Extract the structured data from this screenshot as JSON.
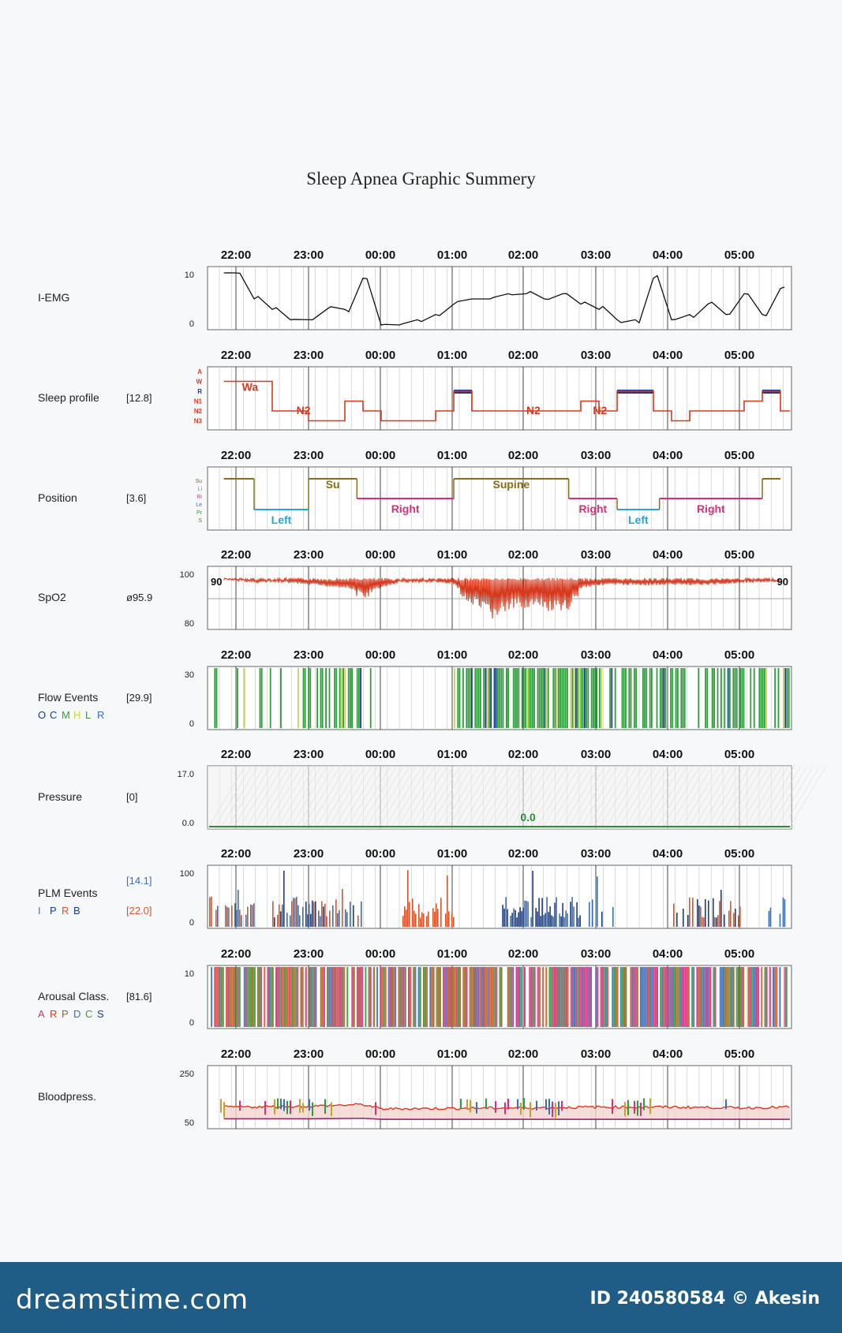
{
  "title": "Sleep Apnea Graphic Summery",
  "time_ticks": [
    "22:00",
    "23:00",
    "00:00",
    "01:00",
    "02:00",
    "03:00",
    "04:00",
    "05:00"
  ],
  "colors": {
    "grid": "#b5b5b5",
    "border": "#666666",
    "emg": "#111111",
    "sleep": "#d63a1e",
    "sleep_rem": "#1a3c8f",
    "position_su": "#8a6d1a",
    "position_left": "#23a6d9",
    "position_right": "#d6307a",
    "spo2": "#d63a1e",
    "flow": "#2e9e3c",
    "flow_c": "#1a3c8f",
    "flow_h": "#c9d64a",
    "pressure": "#2e8b3a",
    "plm_a": "#d9542a",
    "plm_b": "#1a3c8f",
    "plm_c": "#3a6fb5",
    "arousal_a": "#d6307a",
    "arousal_b": "#2e9e3c",
    "arousal_c": "#8a6d1a",
    "bp_sys": "#d63a1e",
    "bp_dia": "#8e2a6a",
    "bp_band": "#f2d4cf"
  },
  "chart_data": [
    {
      "id": "emg",
      "type": "line",
      "label": "I-EMG",
      "value": "",
      "legend": "",
      "ylim": [
        0,
        10
      ],
      "yticks": [
        "10",
        "0"
      ],
      "x": [
        "21:50",
        "22:00",
        "22:15",
        "22:30",
        "22:45",
        "23:00",
        "23:15",
        "23:30",
        "23:45",
        "00:00",
        "00:15",
        "00:30",
        "00:45",
        "01:00",
        "01:15",
        "01:30",
        "01:45",
        "02:00",
        "02:15",
        "02:30",
        "02:45",
        "03:00",
        "03:15",
        "03:30",
        "03:45",
        "04:00",
        "04:15",
        "04:30",
        "04:45",
        "05:00",
        "05:15",
        "05:30"
      ],
      "y": [
        10,
        10,
        5,
        3,
        1,
        1,
        3,
        3,
        9,
        0,
        0,
        1,
        2,
        4,
        5,
        5,
        6,
        6,
        5,
        6,
        4,
        3,
        1,
        1,
        9,
        1,
        2,
        4,
        2,
        6,
        2,
        7
      ]
    },
    {
      "id": "sleep",
      "type": "step",
      "label": "Sleep profile",
      "value": "[12.8]",
      "legend": "",
      "levels": [
        "A",
        "W",
        "R",
        "N1",
        "N2",
        "N3"
      ],
      "annotations": [
        "Wa",
        "N2",
        "N2",
        "N2"
      ],
      "x": [
        "21:50",
        "22:00",
        "22:30",
        "22:45",
        "23:00",
        "23:30",
        "23:45",
        "00:00",
        "00:30",
        "00:45",
        "01:00",
        "01:15",
        "01:30",
        "02:00",
        "02:30",
        "02:45",
        "03:00",
        "03:15",
        "03:30",
        "03:45",
        "04:00",
        "04:15",
        "04:30",
        "05:00",
        "05:15",
        "05:30"
      ],
      "y": [
        "W",
        "W",
        "N2",
        "N2",
        "N3",
        "N1",
        "N2",
        "N3",
        "N3",
        "N2",
        "R",
        "N2",
        "N2",
        "N2",
        "N2",
        "N1",
        "N2",
        "R",
        "R",
        "N2",
        "N3",
        "N2",
        "N2",
        "N1",
        "R",
        "N2"
      ]
    },
    {
      "id": "position",
      "type": "step",
      "label": "Position",
      "value": "[3.6]",
      "legend": "",
      "segments": [
        {
          "label": "",
          "start": "21:50",
          "end": "22:15",
          "pos": "Su"
        },
        {
          "label": "Left",
          "start": "22:15",
          "end": "23:00",
          "pos": "Left"
        },
        {
          "label": "Su",
          "start": "23:00",
          "end": "23:40",
          "pos": "Su"
        },
        {
          "label": "Right",
          "start": "23:40",
          "end": "01:00",
          "pos": "Right"
        },
        {
          "label": "Supine",
          "start": "01:00",
          "end": "02:35",
          "pos": "Su"
        },
        {
          "label": "Right",
          "start": "02:35",
          "end": "03:15",
          "pos": "Right"
        },
        {
          "label": "Left",
          "start": "03:15",
          "end": "03:50",
          "pos": "Left"
        },
        {
          "label": "Right",
          "start": "03:50",
          "end": "05:15",
          "pos": "Right"
        },
        {
          "label": "",
          "start": "05:15",
          "end": "05:30",
          "pos": "Su"
        }
      ]
    },
    {
      "id": "spo2",
      "type": "line",
      "label": "SpO2",
      "value": "ø95.9",
      "legend": "",
      "ylim": [
        80,
        100
      ],
      "yticks": [
        "100",
        "80"
      ],
      "marker": "90",
      "x": [
        "21:50",
        "22:15",
        "22:40",
        "23:00",
        "23:30",
        "23:45",
        "00:15",
        "00:45",
        "01:00",
        "01:10",
        "01:30",
        "01:45",
        "02:00",
        "02:15",
        "02:30",
        "02:45",
        "03:00",
        "03:30",
        "04:00",
        "04:30",
        "05:00",
        "05:30"
      ],
      "y": [
        98,
        97,
        97,
        96,
        95,
        93,
        97,
        97,
        96,
        92,
        88,
        90,
        91,
        90,
        89,
        95,
        96,
        96,
        96,
        96,
        97,
        97
      ]
    },
    {
      "id": "flow",
      "type": "bar",
      "label": "Flow Events",
      "value": "[29.9]",
      "legend": "O C M H L R",
      "ylim": [
        0,
        30
      ],
      "yticks": [
        "30",
        "0"
      ],
      "density": [
        "21:50-22:45 sparse",
        "22:45-23:45 dense",
        "23:45-01:00 sparse",
        "01:00-03:00 dense",
        "03:00-05:30 dense"
      ]
    },
    {
      "id": "pressure",
      "type": "line",
      "label": "Pressure",
      "value": "[0]",
      "legend": "",
      "ylim": [
        0.0,
        17.0
      ],
      "yticks": [
        "17.0",
        "0.0"
      ],
      "annotation": "0.0",
      "x": [
        "21:50",
        "05:30"
      ],
      "y": [
        0,
        0
      ]
    },
    {
      "id": "plm",
      "type": "bar",
      "label": "PLM Events",
      "value": "[14.1]",
      "value2": "[22.0]",
      "legend": "I P R B",
      "ylim": [
        0,
        100
      ],
      "yticks": [
        "100",
        "0"
      ]
    },
    {
      "id": "arousal",
      "type": "bar",
      "label": "Arousal Class.",
      "value": "[81.6]",
      "legend": "A R P D C S",
      "ylim": [
        0,
        10
      ],
      "yticks": [
        "10",
        "0"
      ]
    },
    {
      "id": "bp",
      "type": "line",
      "label": "Bloodpress.",
      "value": "",
      "legend": "",
      "ylim": [
        50,
        250
      ],
      "yticks": [
        "250",
        "50"
      ],
      "x": [
        "21:50",
        "23:00",
        "23:45",
        "00:00",
        "01:00",
        "02:00",
        "03:00",
        "04:00",
        "05:00",
        "05:30"
      ],
      "systolic": [
        115,
        118,
        125,
        108,
        110,
        112,
        115,
        115,
        112,
        115
      ],
      "diastolic": [
        70,
        70,
        72,
        68,
        68,
        68,
        68,
        68,
        68,
        68
      ]
    }
  ],
  "footer": {
    "logo": "dreamstime.com",
    "id": "ID 240580584 © Akesin"
  }
}
